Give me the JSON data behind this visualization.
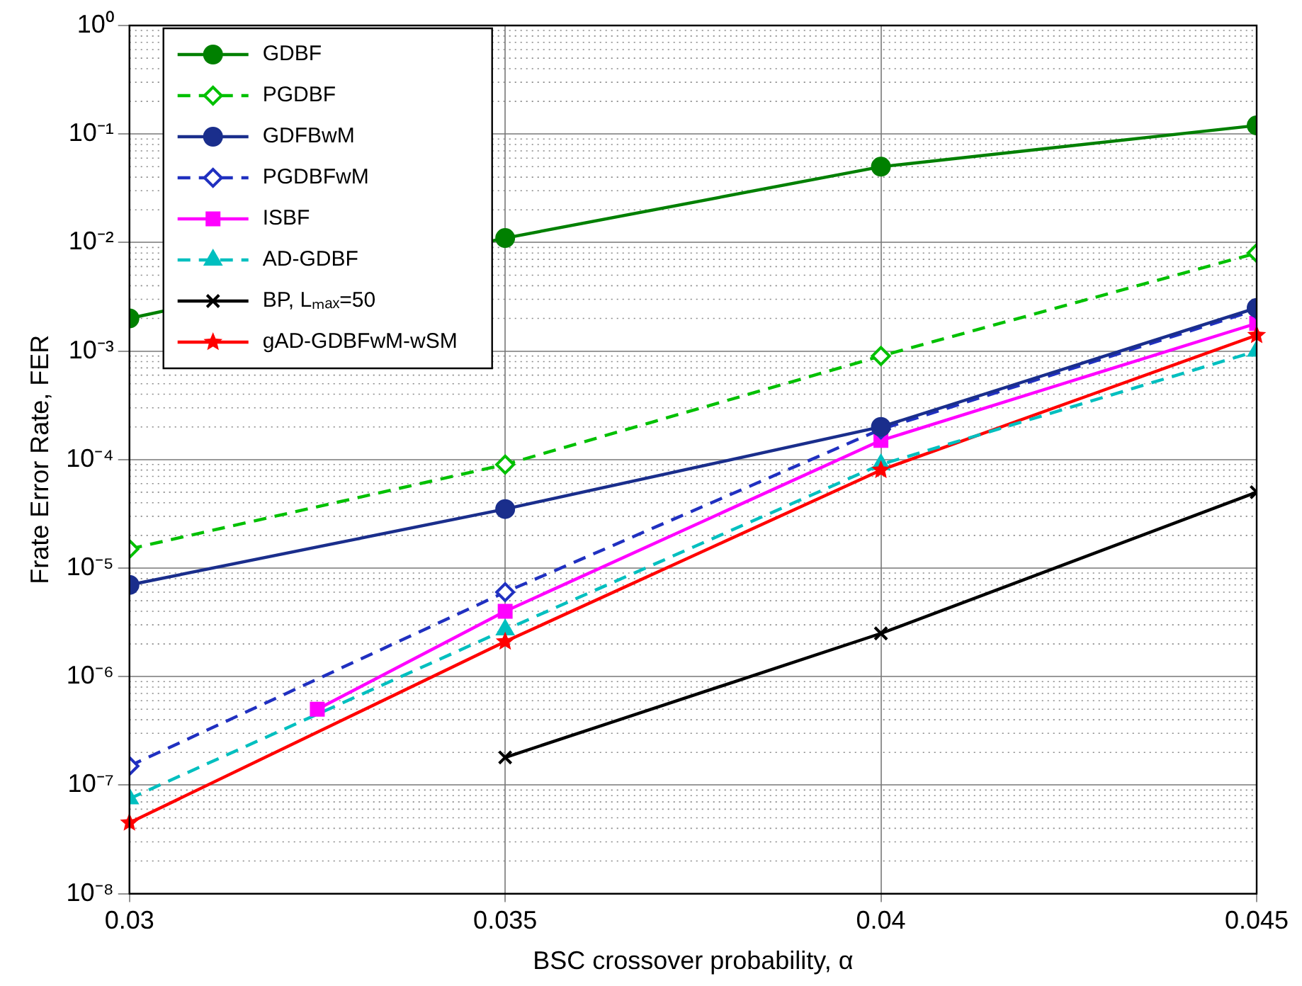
{
  "chart_data": {
    "type": "line",
    "xlabel": "BSC crossover probability, α",
    "ylabel": "Frate Error Rate, FER",
    "x": [
      0.03,
      0.035,
      0.04,
      0.045
    ],
    "series": [
      {
        "name": "GDBF",
        "color": "#008000",
        "marker": "circle",
        "line_style": "solid",
        "values": [
          0.002,
          0.011,
          0.05,
          0.12
        ]
      },
      {
        "name": "PGDBF",
        "color": "#00c000",
        "marker": "diamond",
        "line_style": "dashed",
        "values": [
          1.5e-05,
          9e-05,
          0.0009,
          0.008
        ]
      },
      {
        "name": "GDFBwM",
        "color": "#1a2e8c",
        "marker": "circle",
        "line_style": "solid",
        "values": [
          7e-06,
          3.5e-05,
          0.0002,
          0.0025
        ]
      },
      {
        "name": "PGDBFwM",
        "color": "#2030c0",
        "marker": "diamond",
        "line_style": "dashed",
        "values": [
          1.5e-07,
          6e-06,
          0.00019,
          0.0024
        ]
      },
      {
        "name": "ISBF",
        "color": "#ff00ff",
        "marker": "square",
        "line_style": "solid",
        "x": [
          0.0325,
          0.035,
          0.04,
          0.045
        ],
        "values": [
          5e-07,
          4e-06,
          0.00015,
          0.0018
        ]
      },
      {
        "name": "AD-GDBF",
        "color": "#00bfbf",
        "marker": "triangle",
        "line_style": "dashed",
        "values": [
          7.5e-08,
          2.7e-06,
          9e-05,
          0.001
        ]
      },
      {
        "name": "BP, Lₘₐₓ=50",
        "color": "#000000",
        "marker": "cross",
        "line_style": "solid",
        "values": [
          null,
          1.8e-07,
          2.5e-06,
          5e-05
        ]
      },
      {
        "name": "gAD-GDBFwM-wSM",
        "color": "#ff0000",
        "marker": "star",
        "line_style": "solid",
        "values": [
          4.5e-08,
          2.1e-06,
          8e-05,
          0.0014
        ]
      }
    ],
    "xlim": [
      0.03,
      0.045
    ],
    "xticks": [
      0.03,
      0.035,
      0.04,
      0.045
    ],
    "ylim": [
      1e-08,
      1
    ],
    "yticks": [
      {
        "value": 1e-08,
        "label": "10⁻⁸"
      },
      {
        "value": 1e-07,
        "label": "10⁻⁷"
      },
      {
        "value": 1e-06,
        "label": "10⁻⁶"
      },
      {
        "value": 1e-05,
        "label": "10⁻⁵"
      },
      {
        "value": 0.0001,
        "label": "10⁻⁴"
      },
      {
        "value": 0.001,
        "label": "10⁻³"
      },
      {
        "value": 0.01,
        "label": "10⁻²"
      },
      {
        "value": 0.1,
        "label": "10⁻¹"
      },
      {
        "value": 1,
        "label": "10⁰"
      }
    ],
    "log": "y",
    "grid": true,
    "legend": "top left"
  }
}
